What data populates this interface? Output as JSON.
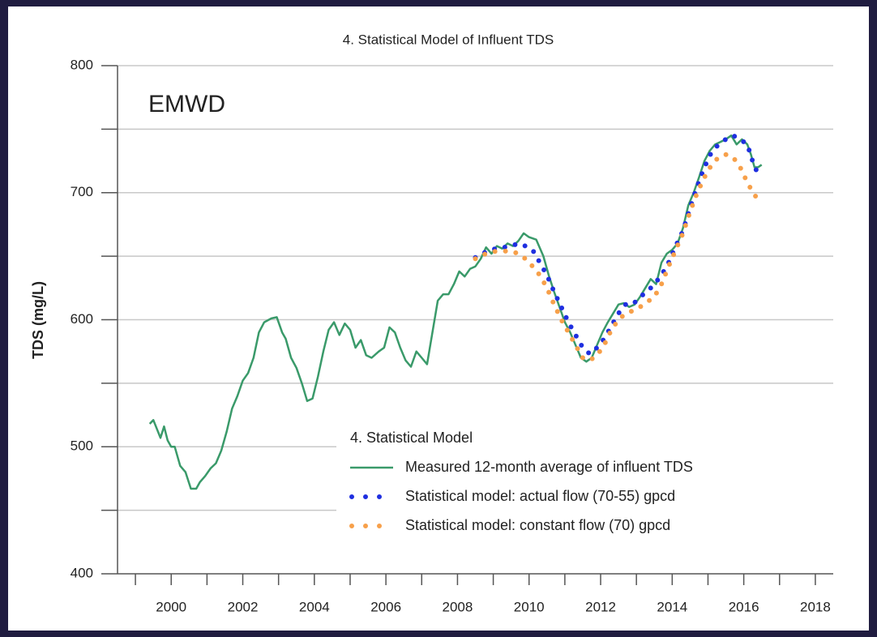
{
  "chart_data": {
    "type": "line",
    "title": "4. Statistical Model of Influent TDS",
    "annotation": "EMWD",
    "y_label": "TDS (mg/L)",
    "xlim": [
      1998.5,
      2018.5
    ],
    "xticks": [
      2000,
      2002,
      2004,
      2006,
      2008,
      2010,
      2012,
      2014,
      2016,
      2018
    ],
    "xminor_ticks": [
      1999,
      2001,
      2003,
      2005,
      2007,
      2009,
      2011,
      2013,
      2015,
      2017
    ],
    "ylim": [
      400,
      800
    ],
    "yticks": [
      400,
      500,
      600,
      700,
      800
    ],
    "yminor_ticks": [
      450,
      550,
      650,
      750
    ],
    "grid": true,
    "legend_title": "4. Statistical Model",
    "series": [
      {
        "name": "Measured 12-month average of influent TDS",
        "color": "#3a9a6a",
        "style": "solid",
        "x": [
          1999.4,
          1999.5,
          1999.6,
          1999.7,
          1999.8,
          1999.9,
          2000.0,
          2000.1,
          2000.25,
          2000.4,
          2000.55,
          2000.7,
          2000.8,
          2000.95,
          2001.1,
          2001.25,
          2001.4,
          2001.55,
          2001.7,
          2001.85,
          2002.0,
          2002.15,
          2002.3,
          2002.45,
          2002.6,
          2002.8,
          2002.95,
          2003.1,
          2003.2,
          2003.35,
          2003.5,
          2003.65,
          2003.8,
          2003.95,
          2004.1,
          2004.25,
          2004.4,
          2004.55,
          2004.7,
          2004.85,
          2005.0,
          2005.15,
          2005.3,
          2005.45,
          2005.6,
          2005.8,
          2005.95,
          2006.1,
          2006.25,
          2006.4,
          2006.55,
          2006.7,
          2006.85,
          2007.0,
          2007.15,
          2007.3,
          2007.45,
          2007.6,
          2007.75,
          2007.9,
          2008.05,
          2008.2,
          2008.35,
          2008.5,
          2008.65,
          2008.8,
          2008.95,
          2009.1,
          2009.25,
          2009.4,
          2009.55,
          2009.7,
          2009.85,
          2010.0,
          2010.2,
          2010.4,
          2010.55,
          2010.7,
          2010.85,
          2011.0,
          2011.15,
          2011.3,
          2011.45,
          2011.6,
          2011.75,
          2011.9,
          2012.05,
          2012.2,
          2012.35,
          2012.5,
          2012.65,
          2012.8,
          2012.95,
          2013.1,
          2013.25,
          2013.4,
          2013.55,
          2013.7,
          2013.85,
          2014.0,
          2014.15,
          2014.3,
          2014.45,
          2014.6,
          2014.75,
          2014.9,
          2015.05,
          2015.2,
          2015.35,
          2015.5,
          2015.65,
          2015.8,
          2015.95,
          2016.1,
          2016.2,
          2016.3,
          2016.4,
          2016.5
        ],
        "values": [
          518,
          521,
          514,
          507,
          516,
          505,
          500,
          500,
          485,
          480,
          467,
          467,
          472,
          477,
          483,
          487,
          497,
          512,
          530,
          540,
          552,
          558,
          570,
          590,
          598,
          601,
          602,
          590,
          585,
          570,
          562,
          550,
          536,
          538,
          555,
          575,
          592,
          598,
          588,
          597,
          592,
          578,
          584,
          572,
          570,
          575,
          578,
          594,
          590,
          578,
          568,
          563,
          575,
          570,
          565,
          590,
          615,
          620,
          620,
          628,
          638,
          634,
          640,
          642,
          648,
          657,
          652,
          658,
          656,
          660,
          658,
          662,
          668,
          665,
          663,
          650,
          635,
          622,
          610,
          598,
          590,
          580,
          570,
          567,
          570,
          580,
          590,
          598,
          605,
          612,
          613,
          610,
          612,
          618,
          625,
          632,
          628,
          645,
          652,
          655,
          660,
          672,
          690,
          700,
          712,
          725,
          733,
          738,
          740,
          742,
          745,
          738,
          742,
          738,
          730,
          720,
          720,
          722
        ]
      },
      {
        "name": "Statistical model: actual flow (70-55) gpcd",
        "color": "#1f2fe0",
        "style": "dotted",
        "x": [
          2008.5,
          2008.7,
          2008.9,
          2009.1,
          2009.3,
          2009.5,
          2009.7,
          2009.9,
          2010.1,
          2010.3,
          2010.5,
          2010.7,
          2010.9,
          2011.1,
          2011.3,
          2011.5,
          2011.7,
          2011.9,
          2012.1,
          2012.3,
          2012.5,
          2012.7,
          2012.9,
          2013.1,
          2013.3,
          2013.5,
          2013.7,
          2013.9,
          2014.1,
          2014.3,
          2014.5,
          2014.7,
          2014.9,
          2015.1,
          2015.3,
          2015.5,
          2015.7,
          2015.9,
          2016.1,
          2016.3,
          2016.5
        ],
        "values": [
          649,
          652,
          655,
          656,
          657,
          658,
          660,
          658,
          655,
          645,
          635,
          622,
          610,
          598,
          588,
          578,
          573,
          578,
          585,
          595,
          605,
          612,
          612,
          618,
          622,
          628,
          635,
          645,
          658,
          670,
          688,
          705,
          720,
          732,
          738,
          742,
          745,
          742,
          738,
          720,
          711
        ]
      },
      {
        "name": "Statistical model: constant flow (70) gpcd",
        "color": "#f7a04a",
        "style": "dotted",
        "x": [
          2008.5,
          2008.7,
          2008.9,
          2009.1,
          2009.3,
          2009.5,
          2009.7,
          2009.9,
          2010.1,
          2010.3,
          2010.5,
          2010.7,
          2010.9,
          2011.1,
          2011.3,
          2011.5,
          2011.7,
          2011.9,
          2012.1,
          2012.3,
          2012.5,
          2012.7,
          2012.9,
          2013.1,
          2013.3,
          2013.5,
          2013.7,
          2013.9,
          2014.1,
          2014.3,
          2014.5,
          2014.7,
          2014.9,
          2015.1,
          2015.3,
          2015.5,
          2015.7,
          2015.9,
          2016.1,
          2016.3,
          2016.5
        ],
        "values": [
          648,
          651,
          653,
          654,
          654,
          654,
          652,
          648,
          642,
          635,
          625,
          612,
          600,
          590,
          580,
          570,
          568,
          572,
          580,
          592,
          600,
          605,
          607,
          610,
          614,
          618,
          628,
          642,
          655,
          668,
          685,
          700,
          712,
          722,
          728,
          730,
          728,
          720,
          708,
          698,
          693
        ]
      }
    ]
  }
}
